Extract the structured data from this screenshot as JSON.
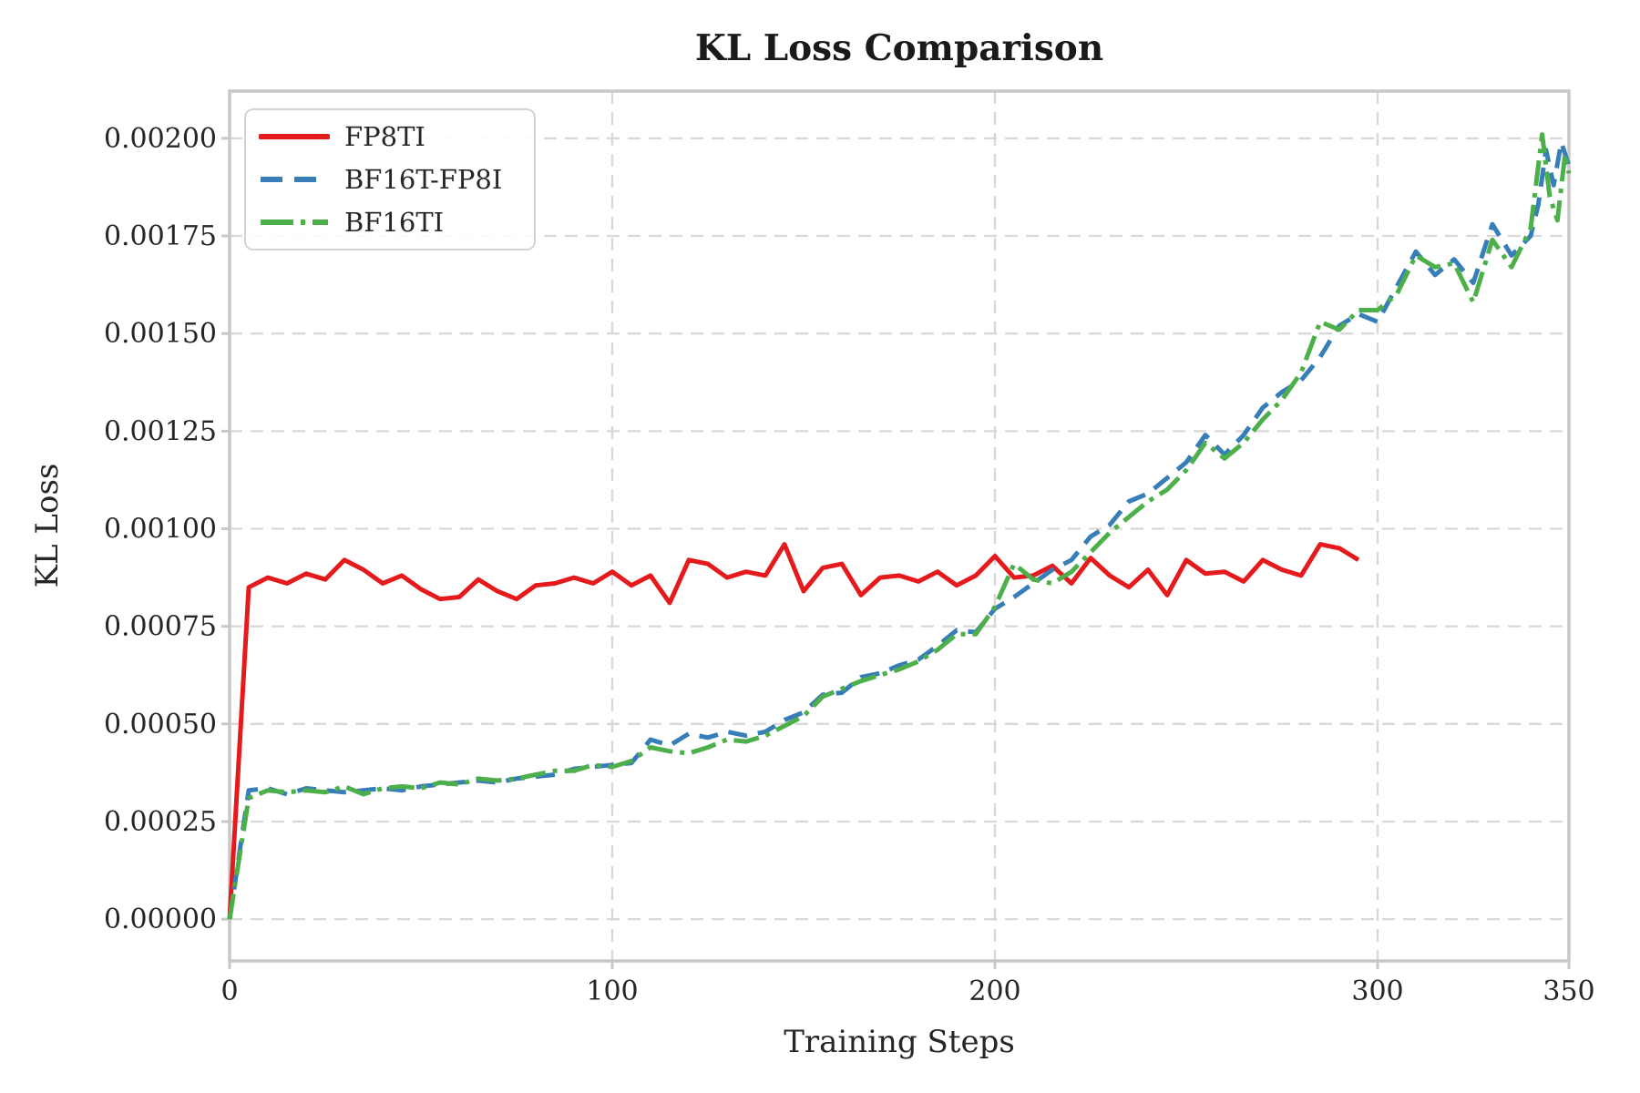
{
  "title": "KL Loss Comparison",
  "x_axis": {
    "label": "Training Steps"
  },
  "y_axis": {
    "label": "KL Loss"
  },
  "legend": {
    "position": "upper-left",
    "entries": [
      "FP8TI",
      "BF16T-FP8I",
      "BF16TI"
    ]
  },
  "style": {
    "background": "#ffffff",
    "text_color": "#262626",
    "grid_color": "#d8d8d8",
    "spine_color": "#c8c8c8",
    "series_colors": {
      "FP8TI": "#e41a1c",
      "BF16T-FP8I": "#377eb8",
      "BF16TI": "#4daf4a"
    }
  },
  "chart_data": {
    "type": "line",
    "title": "KL Loss Comparison",
    "xlabel": "Training Steps",
    "ylabel": "KL Loss",
    "xlim": [
      0,
      350
    ],
    "ylim": [
      -0.000107,
      0.002121
    ],
    "grid": true,
    "legend_position": "upper left",
    "x_ticks": {
      "values": [
        0,
        100,
        200,
        300,
        350
      ],
      "labels": [
        "0",
        "100",
        "200",
        "300",
        "350"
      ]
    },
    "y_ticks": {
      "values": [
        0.0,
        0.00025,
        0.0005,
        0.00075,
        0.001,
        0.00125,
        0.0015,
        0.00175,
        0.002
      ],
      "labels": [
        "0.00000",
        "0.00025",
        "0.00050",
        "0.00075",
        "0.00100",
        "0.00125",
        "0.00150",
        "0.00175",
        "0.00200"
      ]
    },
    "series": [
      {
        "name": "FP8TI",
        "color": "#e41a1c",
        "style": "solid",
        "linewidth": 5,
        "x": [
          0,
          5,
          10,
          15,
          20,
          25,
          30,
          35,
          40,
          45,
          50,
          55,
          60,
          65,
          70,
          75,
          80,
          85,
          90,
          95,
          100,
          105,
          110,
          115,
          120,
          125,
          130,
          135,
          140,
          145,
          150,
          155,
          160,
          165,
          170,
          175,
          180,
          185,
          190,
          195,
          200,
          205,
          210,
          215,
          220,
          225,
          230,
          235,
          240,
          245,
          250,
          255,
          260,
          265,
          270,
          275,
          280,
          285,
          290,
          295
        ],
        "y": [
          0.0,
          0.00085,
          0.000875,
          0.00086,
          0.000885,
          0.00087,
          0.00092,
          0.000895,
          0.00086,
          0.00088,
          0.000845,
          0.00082,
          0.000825,
          0.00087,
          0.00084,
          0.00082,
          0.000855,
          0.00086,
          0.000875,
          0.00086,
          0.00089,
          0.000855,
          0.00088,
          0.00081,
          0.00092,
          0.00091,
          0.000875,
          0.00089,
          0.00088,
          0.00096,
          0.00084,
          0.0009,
          0.00091,
          0.00083,
          0.000875,
          0.00088,
          0.000865,
          0.00089,
          0.000855,
          0.00088,
          0.00093,
          0.000875,
          0.00088,
          0.000905,
          0.00086,
          0.000925,
          0.00088,
          0.00085,
          0.000895,
          0.00083,
          0.00092,
          0.000885,
          0.00089,
          0.000865,
          0.00092,
          0.000895,
          0.00088,
          0.00096,
          0.00095,
          0.00092
        ]
      },
      {
        "name": "BF16T-FP8I",
        "color": "#377eb8",
        "style": "dashed",
        "linewidth": 5,
        "x": [
          0,
          5,
          10,
          15,
          20,
          25,
          30,
          35,
          40,
          45,
          50,
          55,
          60,
          65,
          70,
          75,
          80,
          85,
          90,
          95,
          100,
          105,
          110,
          115,
          120,
          125,
          130,
          135,
          140,
          145,
          150,
          155,
          160,
          165,
          170,
          175,
          180,
          185,
          190,
          195,
          200,
          205,
          210,
          215,
          220,
          225,
          230,
          235,
          240,
          245,
          250,
          255,
          260,
          265,
          270,
          275,
          280,
          285,
          290,
          295,
          300,
          305,
          310,
          315,
          320,
          325,
          330,
          335,
          340,
          342,
          344,
          346,
          348,
          350
        ],
        "y": [
          0.0,
          0.00033,
          0.000335,
          0.00032,
          0.000335,
          0.00033,
          0.000325,
          0.00033,
          0.000335,
          0.00033,
          0.00034,
          0.000345,
          0.00035,
          0.000355,
          0.00035,
          0.00036,
          0.000365,
          0.00037,
          0.000385,
          0.00039,
          0.000395,
          0.0004,
          0.00046,
          0.000445,
          0.000475,
          0.000465,
          0.00048,
          0.00047,
          0.00048,
          0.00051,
          0.00053,
          0.000575,
          0.00058,
          0.00062,
          0.00063,
          0.00065,
          0.000665,
          0.0007,
          0.00074,
          0.000735,
          0.000795,
          0.000825,
          0.00086,
          0.000895,
          0.00092,
          0.00098,
          0.00101,
          0.00107,
          0.00109,
          0.00113,
          0.00117,
          0.00124,
          0.00119,
          0.00124,
          0.00131,
          0.00135,
          0.00138,
          0.00144,
          0.00152,
          0.00155,
          0.00153,
          0.00162,
          0.00171,
          0.00165,
          0.00169,
          0.00163,
          0.00178,
          0.0017,
          0.00175,
          0.00183,
          0.00197,
          0.00188,
          0.00199,
          0.00193
        ]
      },
      {
        "name": "BF16TI",
        "color": "#4daf4a",
        "style": "dashdot",
        "linewidth": 5,
        "x": [
          0,
          5,
          10,
          15,
          20,
          25,
          30,
          35,
          40,
          45,
          50,
          55,
          60,
          65,
          70,
          75,
          80,
          85,
          90,
          95,
          100,
          105,
          110,
          115,
          120,
          125,
          130,
          135,
          140,
          145,
          150,
          155,
          160,
          165,
          170,
          175,
          180,
          185,
          190,
          195,
          200,
          205,
          210,
          215,
          220,
          225,
          230,
          235,
          240,
          245,
          250,
          255,
          260,
          265,
          270,
          275,
          280,
          285,
          290,
          295,
          300,
          305,
          310,
          315,
          320,
          325,
          330,
          335,
          340,
          343,
          345,
          347,
          349,
          350
        ],
        "y": [
          0.0,
          0.00031,
          0.00033,
          0.000325,
          0.00033,
          0.000325,
          0.00034,
          0.00032,
          0.000335,
          0.00034,
          0.000335,
          0.00035,
          0.000345,
          0.00036,
          0.000355,
          0.00036,
          0.00037,
          0.00038,
          0.00038,
          0.000395,
          0.00039,
          0.000405,
          0.00044,
          0.00043,
          0.000425,
          0.00044,
          0.00046,
          0.000455,
          0.00047,
          0.000495,
          0.00052,
          0.00057,
          0.00059,
          0.00061,
          0.000625,
          0.00064,
          0.00066,
          0.00069,
          0.00073,
          0.00073,
          0.0008,
          0.00091,
          0.00087,
          0.00086,
          0.00089,
          0.00094,
          0.00099,
          0.00103,
          0.00107,
          0.0011,
          0.00115,
          0.00122,
          0.00118,
          0.00122,
          0.00128,
          0.00133,
          0.0014,
          0.00153,
          0.00151,
          0.00156,
          0.00156,
          0.0016,
          0.0017,
          0.00167,
          0.00168,
          0.00158,
          0.00174,
          0.00167,
          0.00177,
          0.00201,
          0.00185,
          0.00179,
          0.00196,
          0.00191
        ]
      }
    ]
  }
}
